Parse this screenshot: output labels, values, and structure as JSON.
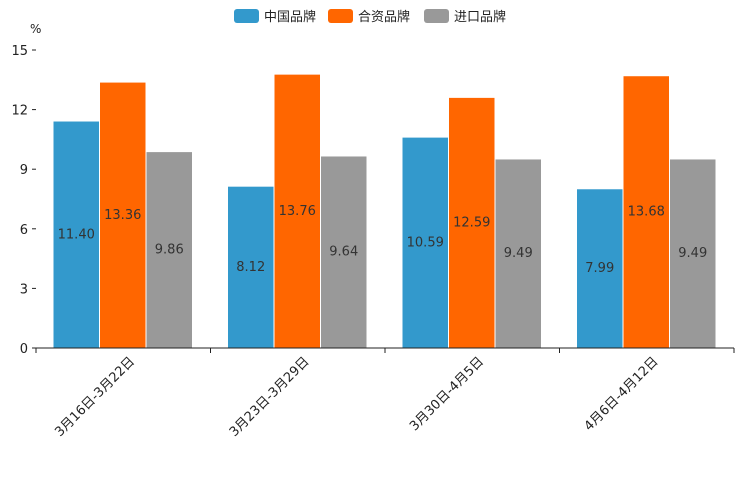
{
  "chart_data": {
    "type": "bar",
    "title": "",
    "xlabel": "",
    "ylabel": "",
    "y_unit": "%",
    "ylim": [
      0,
      15
    ],
    "yticks": [
      0,
      3,
      6,
      9,
      12,
      15
    ],
    "grid": false,
    "legend_position": "top-center",
    "categories": [
      "3月16日-3月22日",
      "3月23日-3月29日",
      "3月30日-4月5日",
      "4月6日-4月12日"
    ],
    "series": [
      {
        "name": "中国品牌",
        "color": "#3399cc",
        "values": [
          11.4,
          8.12,
          10.59,
          7.99
        ],
        "labels": [
          "11.40",
          "8.12",
          "10.59",
          "7.99"
        ]
      },
      {
        "name": "合资品牌",
        "color": "#ff6600",
        "values": [
          13.36,
          13.76,
          12.59,
          13.68
        ],
        "labels": [
          "13.36",
          "13.76",
          "12.59",
          "13.68"
        ]
      },
      {
        "name": "进口品牌",
        "color": "#999999",
        "values": [
          9.86,
          9.64,
          9.49,
          9.49
        ],
        "labels": [
          "9.86",
          "9.64",
          "9.49",
          "9.49"
        ]
      }
    ]
  }
}
